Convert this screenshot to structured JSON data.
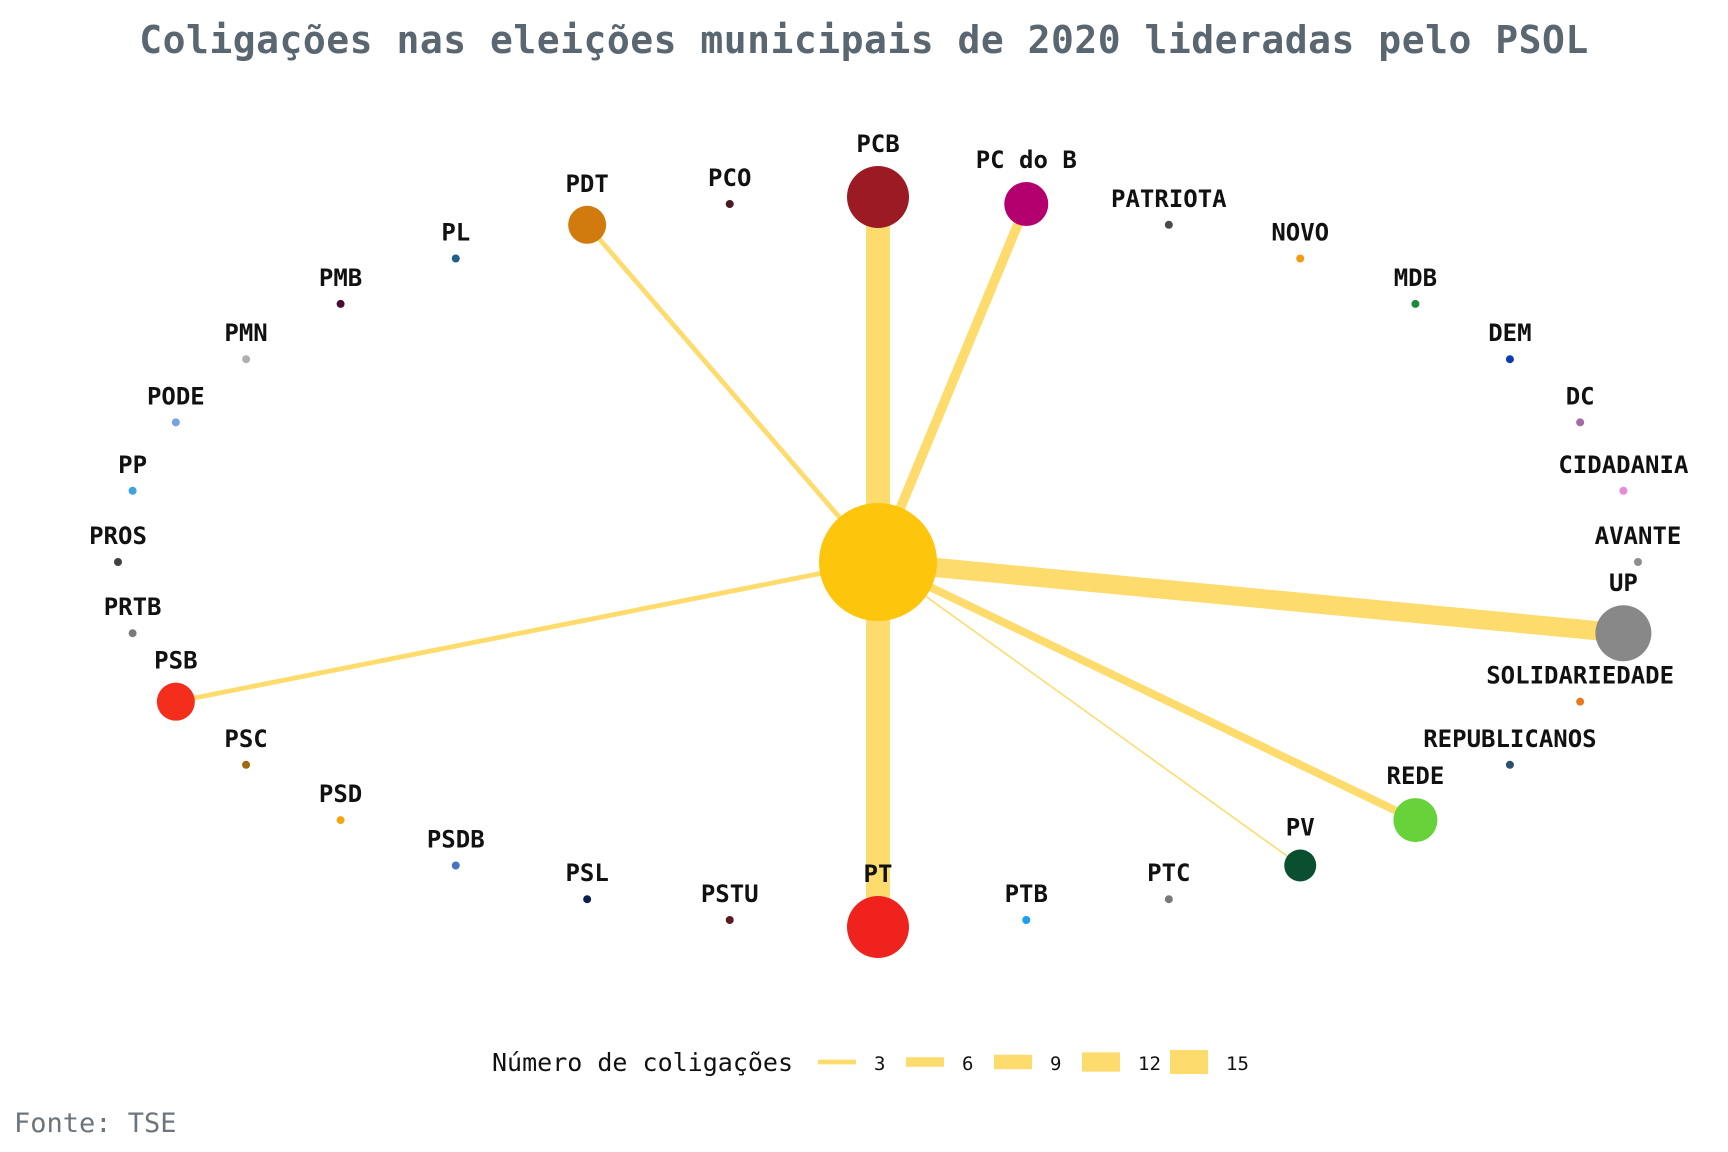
{
  "title": "Coligações nas eleições municipais de 2020 lideradas pelo PSOL",
  "source": "Fonte: TSE",
  "colors": {
    "edge": "#fddb6d",
    "hub": "#fdc50c"
  },
  "chart_data": {
    "type": "network",
    "hub": "PSOL",
    "nodes": [
      {
        "name": "PCB",
        "color": "#9b1a24",
        "coalitions": 15
      },
      {
        "name": "PC do B",
        "color": "#b3006e",
        "coalitions": 6
      },
      {
        "name": "PATRIOTA",
        "color": "#4a4a4a",
        "coalitions": 0
      },
      {
        "name": "NOVO",
        "color": "#f39c12",
        "coalitions": 0
      },
      {
        "name": "MDB",
        "color": "#1e8b3a",
        "coalitions": 0
      },
      {
        "name": "DEM",
        "color": "#0c3bb5",
        "coalitions": 0
      },
      {
        "name": "DC",
        "color": "#a86aa4",
        "coalitions": 0
      },
      {
        "name": "CIDADANIA",
        "color": "#e88ad6",
        "coalitions": 0
      },
      {
        "name": "AVANTE",
        "color": "#8e8e8e",
        "coalitions": 0
      },
      {
        "name": "UP",
        "color": "#888888",
        "coalitions": 12
      },
      {
        "name": "SOLIDARIEDADE",
        "color": "#e9781f",
        "coalitions": 0
      },
      {
        "name": "REPUBLICANOS",
        "color": "#2c4f6e",
        "coalitions": 0
      },
      {
        "name": "REDE",
        "color": "#68d23a",
        "coalitions": 5
      },
      {
        "name": "PV",
        "color": "#0a5030",
        "coalitions": 1
      },
      {
        "name": "PTC",
        "color": "#7a7a7a",
        "coalitions": 0
      },
      {
        "name": "PTB",
        "color": "#1aa0ef",
        "coalitions": 0
      },
      {
        "name": "PT",
        "color": "#f0221e",
        "coalitions": 15
      },
      {
        "name": "PSTU",
        "color": "#5c1a24",
        "coalitions": 0
      },
      {
        "name": "PSL",
        "color": "#0b1f4a",
        "coalitions": 0
      },
      {
        "name": "PSDB",
        "color": "#4a72c4",
        "coalitions": 0
      },
      {
        "name": "PSD",
        "color": "#f1a812",
        "coalitions": 0
      },
      {
        "name": "PSC",
        "color": "#a06a10",
        "coalitions": 0
      },
      {
        "name": "PSB",
        "color": "#f52d1c",
        "coalitions": 3
      },
      {
        "name": "PRTB",
        "color": "#7a7a7a",
        "coalitions": 0
      },
      {
        "name": "PROS",
        "color": "#404040",
        "coalitions": 0
      },
      {
        "name": "PP",
        "color": "#3fa2e0",
        "coalitions": 0
      },
      {
        "name": "PODE",
        "color": "#7aa0e4",
        "coalitions": 0
      },
      {
        "name": "PMN",
        "color": "#b0b0b0",
        "coalitions": 0
      },
      {
        "name": "PMB",
        "color": "#4a0f30",
        "coalitions": 0
      },
      {
        "name": "PL",
        "color": "#1f5f8a",
        "coalitions": 0
      },
      {
        "name": "PDT",
        "color": "#d17a0e",
        "coalitions": 3
      },
      {
        "name": "PCO",
        "color": "#4a1a24",
        "coalitions": 0
      }
    ],
    "legend": {
      "title": "Número de coligações",
      "values": [
        3,
        6,
        9,
        12,
        15
      ]
    }
  }
}
